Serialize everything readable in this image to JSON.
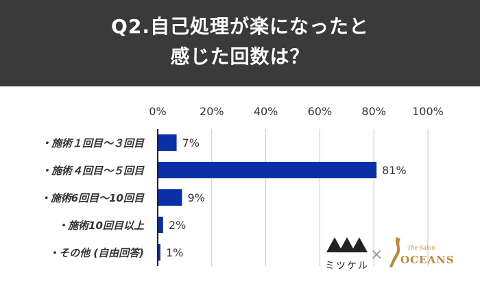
{
  "header": {
    "title_line1": "Q2.自己処理が楽になったと",
    "title_line2": "感じた回数は？"
  },
  "colors": {
    "header_bg": "#3a3a3a",
    "bar": "#0b2fa6",
    "grid": "#c9c9c9",
    "axis": "#222222",
    "text": "#333333",
    "gold": "#b88a3c"
  },
  "chart_data": {
    "type": "bar",
    "orientation": "horizontal",
    "title": "Q2.自己処理が楽になったと感じた回数は？",
    "xlim": [
      0,
      100
    ],
    "ticks": [
      {
        "value": 0,
        "label": "0%"
      },
      {
        "value": 20,
        "label": "20%"
      },
      {
        "value": 40,
        "label": "40%"
      },
      {
        "value": 60,
        "label": "60%"
      },
      {
        "value": 80,
        "label": "80%"
      },
      {
        "value": 100,
        "label": "100%"
      }
    ],
    "categories": [
      "・施術１回目～３回目",
      "・施術４回目～５回目",
      "・施術6回目～10回目",
      "・施術10回目以上",
      "・その他 (自由回答)"
    ],
    "values": [
      7,
      81,
      9,
      2,
      1
    ],
    "value_labels": [
      "7%",
      "81%",
      "9%",
      "2%",
      "1%"
    ],
    "grid": true
  },
  "logos": {
    "mitsukeru": "ミツケル",
    "separator": "×",
    "oceans_small": "The Salon",
    "oceans": "OCEANS"
  }
}
